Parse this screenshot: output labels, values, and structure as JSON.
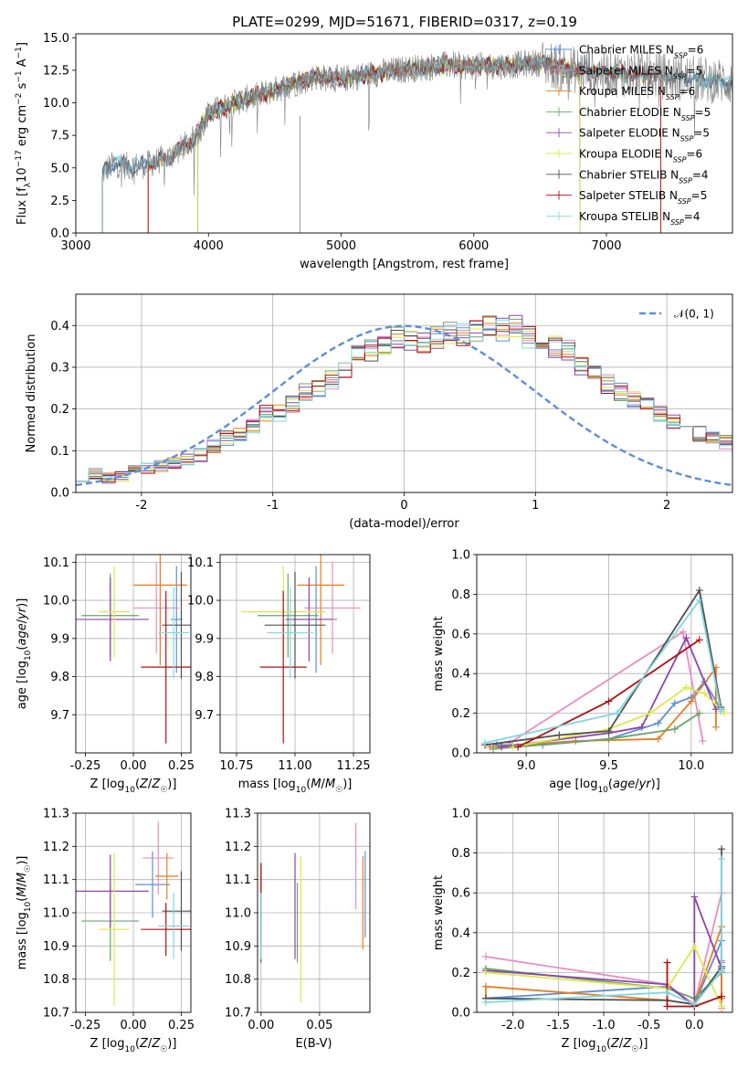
{
  "title": "PLATE=0299, MJD=51671, FIBERID=0317, z=0.19",
  "colors": {
    "Chabrier MILES": "#5b8fd8",
    "Salpeter MILES": "#e98cc0",
    "Kroupa MILES": "#e87c1e",
    "Chabrier ELODIE": "#6aa36a",
    "Salpeter ELODIE": "#8e44ad",
    "Kroupa ELODIE": "#dce84a",
    "Chabrier STELIB": "#505050",
    "Salpeter STELIB": "#b01010",
    "Kroupa STELIB": "#7fd8e0"
  },
  "chart_data": [
    {
      "type": "line",
      "id": "spectrum",
      "xlabel": "wavelength [Angstrom, rest frame]",
      "ylabel": "Flux [f",
      "ylabel_full": "Flux [fλ10⁻¹⁷ erg cm⁻² s⁻¹ A⁻¹]",
      "xlim": [
        3000,
        7950
      ],
      "ylim": [
        0,
        15.3
      ],
      "xticks": [
        3000,
        4000,
        5000,
        6000,
        7000
      ],
      "yticks": [
        0.0,
        2.5,
        5.0,
        7.5,
        10.0,
        12.5,
        15.0
      ],
      "data_start": 3200,
      "legend": [
        {
          "name": "Chabrier MILES",
          "suffix": "6"
        },
        {
          "name": "Salpeter MILES",
          "suffix": "5"
        },
        {
          "name": "Kroupa MILES",
          "suffix": "6"
        },
        {
          "name": "Chabrier ELODIE",
          "suffix": "5"
        },
        {
          "name": "Salpeter ELODIE",
          "suffix": "5"
        },
        {
          "name": "Kroupa ELODIE",
          "suffix": "6"
        },
        {
          "name": "Chabrier STELIB",
          "suffix": "4"
        },
        {
          "name": "Salpeter STELIB",
          "suffix": "5"
        },
        {
          "name": "Kroupa STELIB",
          "suffix": "4"
        }
      ],
      "legend_prefix": "N",
      "legend_sub": "SSP",
      "continuum": {
        "x": [
          3200,
          3300,
          3400,
          3550,
          3700,
          3900,
          4000,
          4200,
          4500,
          4800,
          5000,
          5200,
          5500,
          5800,
          6000,
          6300,
          6500,
          6700,
          7000,
          7400,
          7700,
          7950
        ],
        "y": [
          4.6,
          5.4,
          5.1,
          5.3,
          5.8,
          7.3,
          9.2,
          10.0,
          11.0,
          12.0,
          11.8,
          12.2,
          12.6,
          12.9,
          12.8,
          12.9,
          13.1,
          12.6,
          12.3,
          12.1,
          11.8,
          11.6
        ]
      },
      "cutoffs": {
        "Salpeter MILES": [
          3545,
          6800
        ],
        "Kroupa MILES": [
          3545,
          7410
        ],
        "Salpeter STELIB": [
          3545,
          7410
        ],
        "Kroupa ELODIE": [
          3920,
          6800
        ],
        "Salpeter ELODIE": [
          3920,
          6800
        ],
        "Chabrier ELODIE": [
          3920,
          6800
        ]
      }
    },
    {
      "type": "area",
      "id": "residual-histogram",
      "xlabel": "(data-model)/error",
      "ylabel": "Normed distribution",
      "xlim": [
        -2.5,
        2.5
      ],
      "ylim": [
        0,
        0.475
      ],
      "xticks": [
        -2,
        -1,
        0,
        1,
        2
      ],
      "yticks": [
        0.0,
        0.1,
        0.2,
        0.3,
        0.4
      ],
      "legend": "𝒩(0, 1)",
      "grid": true,
      "bin_start": -2.5,
      "bin_width": 0.1,
      "base": [
        0.04,
        0.045,
        0.035,
        0.04,
        0.05,
        0.06,
        0.065,
        0.07,
        0.08,
        0.09,
        0.11,
        0.13,
        0.14,
        0.16,
        0.19,
        0.19,
        0.21,
        0.24,
        0.25,
        0.27,
        0.3,
        0.33,
        0.34,
        0.35,
        0.37,
        0.36,
        0.36,
        0.37,
        0.38,
        0.38,
        0.39,
        0.4,
        0.39,
        0.4,
        0.37,
        0.36,
        0.35,
        0.34,
        0.3,
        0.28,
        0.26,
        0.24,
        0.22,
        0.21,
        0.19,
        0.17,
        0.16,
        0.14,
        0.13,
        0.12,
        0.1,
        0.085,
        0.075,
        0.07,
        0.06,
        0.055,
        0.05,
        0.045,
        0.04,
        0.035
      ]
    },
    {
      "type": "scatter",
      "id": "age-vs-metallicity",
      "xlabel": "Z [log10(Z/Z☉)]",
      "ylabel": "age  [log10(age/yr)]",
      "xlim": [
        -0.3,
        0.3
      ],
      "ylim": [
        9.6,
        10.12
      ],
      "xticks": [
        -0.25,
        0.0,
        0.25
      ],
      "yticks": [
        9.7,
        9.8,
        9.9,
        10.0,
        10.1
      ],
      "points": [
        {
          "series": "Chabrier MILES",
          "x": 0.225,
          "y": 9.95,
          "xerr": 0.03,
          "yerr": 0.14
        },
        {
          "series": "Salpeter MILES",
          "x": 0.12,
          "y": 9.98,
          "xerr": 0.12,
          "yerr": 0.12
        },
        {
          "series": "Kroupa MILES",
          "x": 0.14,
          "y": 10.04,
          "xerr": 0.14,
          "yerr": 0.21
        },
        {
          "series": "Chabrier ELODIE",
          "x": -0.12,
          "y": 9.96,
          "xerr": 0.15,
          "yerr": 0.11
        },
        {
          "series": "Salpeter ELODIE",
          "x": -0.12,
          "y": 9.95,
          "xerr": 0.2,
          "yerr": 0.11
        },
        {
          "series": "Kroupa ELODIE",
          "x": -0.1,
          "y": 9.97,
          "xerr": 0.08,
          "yerr": 0.12
        },
        {
          "series": "Chabrier STELIB",
          "x": 0.25,
          "y": 9.935,
          "xerr": 0.1,
          "yerr": 0.14
        },
        {
          "series": "Salpeter STELIB",
          "x": 0.17,
          "y": 9.825,
          "xerr": 0.13,
          "yerr": 0.2
        },
        {
          "series": "Kroupa STELIB",
          "x": 0.21,
          "y": 9.915,
          "xerr": 0.08,
          "yerr": 0.12
        }
      ]
    },
    {
      "type": "scatter",
      "id": "age-vs-mass",
      "xlabel": "mass [log10(M/M☉)]",
      "ylabel": "",
      "xlim": [
        10.68,
        11.32
      ],
      "ylim": [
        9.6,
        10.12
      ],
      "xticks": [
        10.75,
        11.0,
        11.25
      ],
      "yticks": [
        9.7,
        9.8,
        9.9,
        10.0,
        10.1
      ],
      "points": [
        {
          "series": "Chabrier MILES",
          "x": 11.09,
          "y": 9.95,
          "xerr": 0.09,
          "yerr": 0.14
        },
        {
          "series": "Salpeter MILES",
          "x": 11.16,
          "y": 9.98,
          "xerr": 0.12,
          "yerr": 0.12
        },
        {
          "series": "Kroupa MILES",
          "x": 11.11,
          "y": 10.04,
          "xerr": 0.1,
          "yerr": 0.21
        },
        {
          "series": "Chabrier ELODIE",
          "x": 10.97,
          "y": 9.96,
          "xerr": 0.13,
          "yerr": 0.11
        },
        {
          "series": "Salpeter ELODIE",
          "x": 11.06,
          "y": 9.95,
          "xerr": 0.1,
          "yerr": 0.11
        },
        {
          "series": "Kroupa ELODIE",
          "x": 10.95,
          "y": 9.97,
          "xerr": 0.18,
          "yerr": 0.12
        },
        {
          "series": "Chabrier STELIB",
          "x": 11.0,
          "y": 9.935,
          "xerr": 0.13,
          "yerr": 0.14
        },
        {
          "series": "Salpeter STELIB",
          "x": 10.95,
          "y": 9.825,
          "xerr": 0.1,
          "yerr": 0.2
        },
        {
          "series": "Kroupa STELIB",
          "x": 10.98,
          "y": 9.915,
          "xerr": 0.1,
          "yerr": 0.12
        }
      ]
    },
    {
      "type": "line",
      "id": "mass-weight-vs-age",
      "xlabel": "age  [log10(age/yr)]",
      "ylabel": "mass weight",
      "xlim": [
        8.7,
        10.25
      ],
      "ylim": [
        0,
        1.0
      ],
      "xticks": [
        9.0,
        9.5,
        10.0
      ],
      "yticks": [
        0.0,
        0.2,
        0.4,
        0.6,
        0.8,
        1.0
      ],
      "grid": true,
      "series": [
        {
          "name": "Chabrier MILES",
          "x": [
            8.82,
            9.1,
            9.5,
            9.8,
            9.9,
            10.0,
            10.08,
            10.18
          ],
          "y": [
            0.04,
            0.04,
            0.07,
            0.15,
            0.25,
            0.28,
            0.36,
            0.22
          ]
        },
        {
          "name": "Salpeter MILES",
          "x": [
            8.9,
            9.95,
            10.07
          ],
          "y": [
            0.05,
            0.61,
            0.06
          ]
        },
        {
          "name": "Kroupa MILES",
          "x": [
            8.78,
            9.3,
            9.8,
            10.0,
            10.15,
            10.15
          ],
          "y": [
            0.03,
            0.06,
            0.07,
            0.26,
            0.43,
            0.13
          ]
        },
        {
          "name": "Chabrier ELODIE",
          "x": [
            8.8,
            9.5,
            9.9,
            10.05
          ],
          "y": [
            0.02,
            0.07,
            0.12,
            0.2
          ]
        },
        {
          "name": "Salpeter ELODIE",
          "x": [
            8.85,
            9.5,
            9.7,
            9.97,
            10.15
          ],
          "y": [
            0.03,
            0.1,
            0.13,
            0.58,
            0.22
          ]
        },
        {
          "name": "Kroupa ELODIE",
          "x": [
            8.92,
            9.5,
            9.75,
            9.97,
            10.08,
            10.2
          ],
          "y": [
            0.03,
            0.12,
            0.2,
            0.33,
            0.3,
            0.2
          ]
        },
        {
          "name": "Chabrier STELIB",
          "x": [
            8.75,
            9.2,
            9.5,
            10.05,
            10.18
          ],
          "y": [
            0.04,
            0.09,
            0.11,
            0.82,
            0.23
          ]
        },
        {
          "name": "Salpeter STELIB",
          "x": [
            8.95,
            9.5,
            10.05
          ],
          "y": [
            0.03,
            0.26,
            0.57
          ]
        },
        {
          "name": "Kroupa STELIB",
          "x": [
            8.75,
            9.55,
            10.05,
            10.18
          ],
          "y": [
            0.05,
            0.2,
            0.77,
            0.21
          ]
        }
      ]
    },
    {
      "type": "line",
      "id": "mass-weight-vs-metallicity",
      "xlabel": "Z [log10(Z/Z☉)]",
      "ylabel": "mass weight",
      "xlim": [
        -2.4,
        0.42
      ],
      "ylim": [
        0,
        1.0
      ],
      "xticks": [
        -2.0,
        -1.5,
        -1.0,
        -0.5,
        0.0
      ],
      "yticks": [
        0.0,
        0.2,
        0.4,
        0.6,
        0.8,
        1.0
      ],
      "grid": true,
      "series": [
        {
          "name": "Chabrier MILES",
          "x": [
            -2.3,
            -0.3,
            0.0,
            0.3,
            0.3,
            0.3
          ],
          "y": [
            0.07,
            0.13,
            0.04,
            0.36,
            0.25,
            0.03
          ]
        },
        {
          "name": "Salpeter MILES",
          "x": [
            -2.3,
            -0.3,
            0.0,
            0.3,
            0.3
          ],
          "y": [
            0.28,
            0.14,
            0.04,
            0.6,
            0.02
          ]
        },
        {
          "name": "Kroupa MILES",
          "x": [
            -2.3,
            -2.3,
            -0.3,
            0.0,
            0.3,
            0.3,
            0.3
          ],
          "y": [
            0.07,
            0.13,
            0.06,
            0.04,
            0.43,
            0.26,
            0.07
          ]
        },
        {
          "name": "Chabrier ELODIE",
          "x": [
            -2.3,
            -0.3,
            0.0,
            0.3
          ],
          "y": [
            0.22,
            0.12,
            0.07,
            0.2
          ]
        },
        {
          "name": "Salpeter ELODIE",
          "x": [
            -2.3,
            -0.3,
            0.0,
            0.0,
            0.3
          ],
          "y": [
            0.21,
            0.14,
            0.03,
            0.58,
            0.22
          ]
        },
        {
          "name": "Kroupa ELODIE",
          "x": [
            -2.3,
            -0.3,
            0.0,
            0.3
          ],
          "y": [
            0.2,
            0.12,
            0.33,
            0.03
          ]
        },
        {
          "name": "Chabrier STELIB",
          "x": [
            -2.3,
            -0.3,
            0.0,
            0.3,
            0.3
          ],
          "y": [
            0.07,
            0.06,
            0.04,
            0.23,
            0.82
          ]
        },
        {
          "name": "Salpeter STELIB",
          "x": [
            -0.3,
            -0.3,
            0.0,
            0.3
          ],
          "y": [
            0.25,
            0.03,
            0.03,
            0.08
          ]
        },
        {
          "name": "Kroupa STELIB",
          "x": [
            -2.3,
            -0.3,
            0.0,
            0.3,
            0.3
          ],
          "y": [
            0.05,
            0.1,
            0.04,
            0.21,
            0.77
          ]
        }
      ]
    },
    {
      "type": "scatter",
      "id": "mass-vs-metallicity",
      "xlabel": "Z [log10(Z/Z☉)]",
      "ylabel": "mass [log10(M/M☉)]",
      "xlim": [
        -0.3,
        0.3
      ],
      "ylim": [
        10.7,
        11.3
      ],
      "xticks": [
        -0.25,
        0.0,
        0.25
      ],
      "yticks": [
        10.7,
        10.8,
        10.9,
        11.0,
        11.1,
        11.2,
        11.3
      ],
      "points": [
        {
          "series": "Chabrier MILES",
          "x": 0.1,
          "y": 11.085,
          "xerr": 0.09,
          "yerr": 0.1
        },
        {
          "series": "Salpeter MILES",
          "x": 0.13,
          "y": 11.165,
          "xerr": 0.08,
          "yerr": 0.11
        },
        {
          "series": "Kroupa MILES",
          "x": 0.175,
          "y": 11.11,
          "xerr": 0.06,
          "yerr": 0.07
        },
        {
          "series": "Chabrier ELODIE",
          "x": -0.12,
          "y": 10.975,
          "xerr": 0.15,
          "yerr": 0.12
        },
        {
          "series": "Salpeter ELODIE",
          "x": -0.12,
          "y": 11.065,
          "xerr": 0.2,
          "yerr": 0.11
        },
        {
          "series": "Kroupa ELODIE",
          "x": -0.1,
          "y": 10.95,
          "xerr": 0.08,
          "yerr": 0.23
        },
        {
          "series": "Chabrier STELIB",
          "x": 0.25,
          "y": 11.005,
          "xerr": 0.1,
          "yerr": 0.12
        },
        {
          "series": "Salpeter STELIB",
          "x": 0.17,
          "y": 10.95,
          "xerr": 0.13,
          "yerr": 0.08
        },
        {
          "series": "Kroupa STELIB",
          "x": 0.21,
          "y": 10.96,
          "xerr": 0.08,
          "yerr": 0.1
        }
      ]
    },
    {
      "type": "scatter",
      "id": "mass-vs-extinction",
      "xlabel": "E(B-V)",
      "ylabel": "",
      "xlim": [
        -0.003,
        0.093
      ],
      "ylim": [
        10.7,
        11.3
      ],
      "xticks": [
        0.0,
        0.05
      ],
      "yticks": [
        10.7,
        10.8,
        10.9,
        11.0,
        11.1,
        11.2,
        11.3
      ],
      "points": [
        {
          "series": "Chabrier MILES",
          "x": 0.089,
          "y": 11.055,
          "xerr": 0,
          "yerr": 0.13
        },
        {
          "series": "Salpeter MILES",
          "x": 0.081,
          "y": 11.14,
          "xerr": 0,
          "yerr": 0.13
        },
        {
          "series": "Kroupa MILES",
          "x": 0.087,
          "y": 11.03,
          "xerr": 0,
          "yerr": 0.14
        },
        {
          "series": "Chabrier ELODIE",
          "x": 0.031,
          "y": 10.97,
          "xerr": 0,
          "yerr": 0.12
        },
        {
          "series": "Salpeter ELODIE",
          "x": 0.029,
          "y": 11.02,
          "xerr": 0,
          "yerr": 0.16
        },
        {
          "series": "Kroupa ELODIE",
          "x": 0.034,
          "y": 10.95,
          "xerr": 0,
          "yerr": 0.22
        },
        {
          "series": "Chabrier STELIB",
          "x": 0.0,
          "y": 11.0,
          "xerr": 0,
          "yerr": 0.15
        },
        {
          "series": "Salpeter STELIB",
          "x": 0.0,
          "y": 11.03,
          "xerr": 0,
          "yerr": 0.12
        },
        {
          "series": "Kroupa STELIB",
          "x": 0.0,
          "y": 10.96,
          "xerr": 0,
          "yerr": 0.1
        }
      ]
    }
  ]
}
